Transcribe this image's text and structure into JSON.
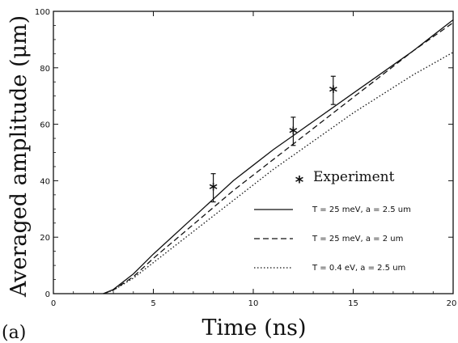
{
  "chart_data": {
    "type": "line",
    "panel_label": "(a)",
    "xlabel": "Time (ns)",
    "ylabel": "Averaged amplitude (μm)",
    "xlim": [
      0,
      20
    ],
    "ylim": [
      0,
      100
    ],
    "xticks": [
      0,
      5,
      10,
      15,
      20
    ],
    "yticks": [
      0,
      20,
      40,
      60,
      80,
      100
    ],
    "grid": false,
    "legend_position": "lower-right",
    "series": [
      {
        "name": "T = 25 meV, a = 2.5 um",
        "style": "solid",
        "x": [
          2.5,
          3.0,
          4.0,
          5.0,
          6.0,
          7.0,
          8.0,
          9.0,
          10.0,
          11.0,
          12.0,
          13.0,
          14.0,
          15.0,
          16.0,
          17.0,
          18.0,
          19.0,
          20.0
        ],
        "y": [
          0,
          1.5,
          7,
          14,
          20.5,
          27,
          33.5,
          40,
          45.5,
          51,
          56,
          61,
          66,
          71,
          76,
          81,
          86,
          91.5,
          97
        ]
      },
      {
        "name": "T = 25 meV, a = 2 um",
        "style": "dashed",
        "x": [
          2.5,
          3.0,
          4.0,
          5.0,
          6.0,
          7.0,
          8.0,
          9.0,
          10.0,
          11.0,
          12.0,
          13.0,
          14.0,
          15.0,
          16.0,
          17.0,
          18.0,
          19.0,
          20.0
        ],
        "y": [
          0,
          1.3,
          6,
          12.5,
          18.5,
          24.5,
          30.5,
          36.5,
          42,
          47.5,
          53,
          58.5,
          64,
          69.5,
          75,
          80.5,
          86,
          91,
          96
        ]
      },
      {
        "name": "T = 0.4 eV, a = 2.5 um",
        "style": "dotted",
        "x": [
          2.5,
          3.0,
          4.0,
          5.0,
          6.0,
          7.0,
          8.0,
          9.0,
          10.0,
          11.0,
          12.0,
          13.0,
          14.0,
          15.0,
          16.0,
          17.0,
          18.0,
          19.0,
          20.0
        ],
        "y": [
          0,
          1.2,
          5.5,
          11,
          16.5,
          22,
          27.5,
          33,
          38.5,
          44,
          49,
          54,
          59,
          64,
          68.5,
          73,
          77.5,
          81.5,
          85.5
        ]
      }
    ],
    "experiment": {
      "name": "Experiment",
      "marker": "*",
      "points": [
        {
          "x": 8,
          "y": 37.5,
          "err": 5
        },
        {
          "x": 12,
          "y": 57.5,
          "err": 5
        },
        {
          "x": 14,
          "y": 72,
          "err": 5
        }
      ]
    }
  }
}
